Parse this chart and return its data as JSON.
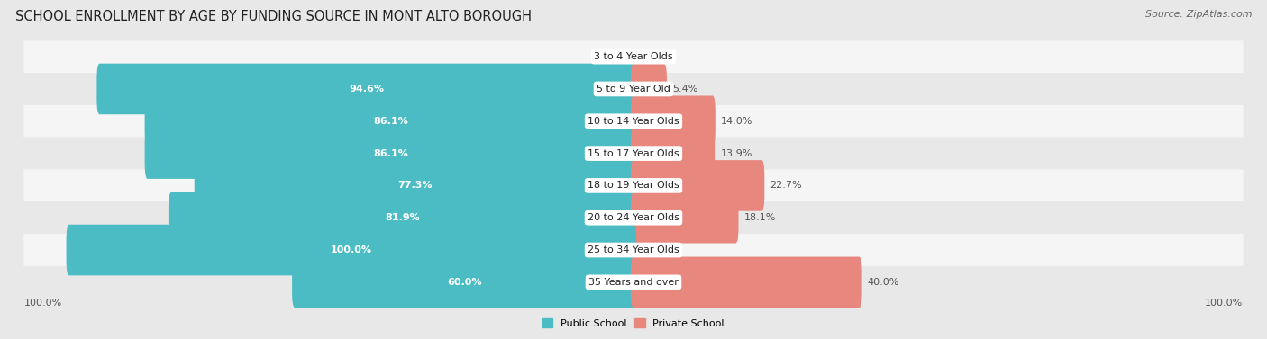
{
  "title": "SCHOOL ENROLLMENT BY AGE BY FUNDING SOURCE IN MONT ALTO BOROUGH",
  "source": "Source: ZipAtlas.com",
  "categories": [
    "3 to 4 Year Olds",
    "5 to 9 Year Old",
    "10 to 14 Year Olds",
    "15 to 17 Year Olds",
    "18 to 19 Year Olds",
    "20 to 24 Year Olds",
    "25 to 34 Year Olds",
    "35 Years and over"
  ],
  "public_values": [
    0.0,
    94.6,
    86.1,
    86.1,
    77.3,
    81.9,
    100.0,
    60.0
  ],
  "private_values": [
    0.0,
    5.4,
    14.0,
    13.9,
    22.7,
    18.1,
    0.0,
    40.0
  ],
  "public_color": "#4BBCC4",
  "private_color": "#E8877D",
  "bg_color": "#e8e8e8",
  "row_colors": [
    "#f5f5f5",
    "#e8e8e8"
  ],
  "axis_label_left": "100.0%",
  "axis_label_right": "100.0%",
  "legend_public": "Public School",
  "legend_private": "Private School",
  "title_fontsize": 10.5,
  "source_fontsize": 8,
  "label_fontsize": 8,
  "category_fontsize": 8,
  "axis_fontsize": 8
}
